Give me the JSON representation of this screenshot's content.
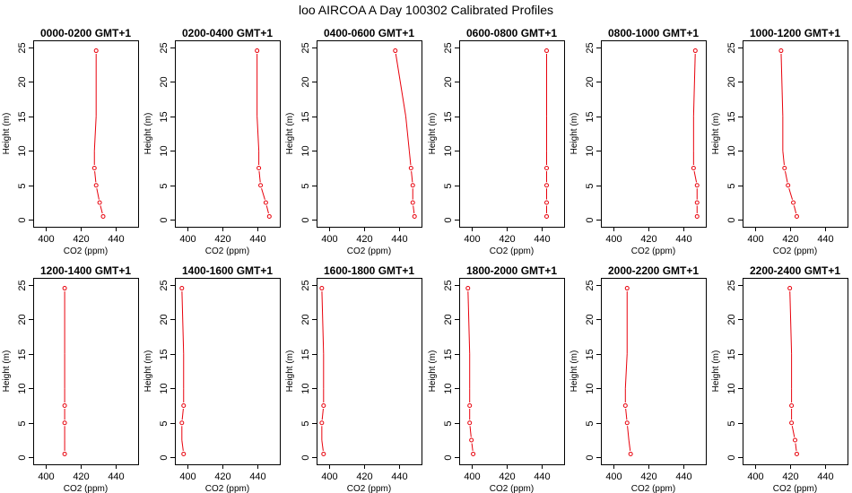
{
  "title": "loo AIRCOA A  Day 100302  Calibrated Profiles",
  "colors": {
    "series": "#e8000b",
    "axis": "#000000",
    "background": "#ffffff"
  },
  "chart_data": [
    {
      "type": "line",
      "title": "0000-0200 GMT+1",
      "xlabel": "CO2 (ppm)",
      "ylabel": "Height (m)",
      "xlim": [
        393,
        453
      ],
      "ylim": [
        -1,
        26
      ],
      "xticks": [
        400,
        420,
        440
      ],
      "yticks": [
        0,
        5,
        10,
        15,
        20,
        25
      ],
      "series": [
        {
          "x": [
            433,
            431,
            429,
            428,
            428,
            429,
            429
          ],
          "y": [
            0.5,
            2.5,
            5,
            7.5,
            10,
            15,
            24.5
          ],
          "markers": [
            true,
            true,
            true,
            true,
            false,
            false,
            true
          ]
        }
      ]
    },
    {
      "type": "line",
      "title": "0200-0400 GMT+1",
      "xlabel": "CO2 (ppm)",
      "ylabel": "Height (m)",
      "xlim": [
        393,
        453
      ],
      "ylim": [
        -1,
        26
      ],
      "xticks": [
        400,
        420,
        440
      ],
      "yticks": [
        0,
        5,
        10,
        15,
        20,
        25
      ],
      "series": [
        {
          "x": [
            447,
            445,
            442,
            441,
            441,
            440,
            440
          ],
          "y": [
            0.5,
            2.5,
            5,
            7.5,
            10,
            15,
            24.5
          ],
          "markers": [
            true,
            true,
            true,
            true,
            false,
            false,
            true
          ]
        }
      ]
    },
    {
      "type": "line",
      "title": "0400-0600 GMT+1",
      "xlabel": "CO2 (ppm)",
      "ylabel": "Height (m)",
      "xlim": [
        393,
        453
      ],
      "ylim": [
        -1,
        26
      ],
      "xticks": [
        400,
        420,
        440
      ],
      "yticks": [
        0,
        5,
        10,
        15,
        20,
        25
      ],
      "series": [
        {
          "x": [
            449,
            448,
            448,
            447,
            446,
            444,
            438
          ],
          "y": [
            0.5,
            2.5,
            5,
            7.5,
            10,
            15,
            24.5
          ],
          "markers": [
            true,
            true,
            true,
            true,
            false,
            false,
            true
          ]
        }
      ]
    },
    {
      "type": "line",
      "title": "0600-0800 GMT+1",
      "xlabel": "CO2 (ppm)",
      "ylabel": "Height (m)",
      "xlim": [
        393,
        453
      ],
      "ylim": [
        -1,
        26
      ],
      "xticks": [
        400,
        420,
        440
      ],
      "yticks": [
        0,
        5,
        10,
        15,
        20,
        25
      ],
      "series": [
        {
          "x": [
            443,
            443,
            443,
            443,
            443,
            443,
            443
          ],
          "y": [
            0.5,
            2.5,
            5,
            7.5,
            10,
            15,
            24.5
          ],
          "markers": [
            true,
            true,
            true,
            true,
            false,
            false,
            true
          ]
        }
      ]
    },
    {
      "type": "line",
      "title": "0800-1000 GMT+1",
      "xlabel": "CO2 (ppm)",
      "ylabel": "Height (m)",
      "xlim": [
        393,
        453
      ],
      "ylim": [
        -1,
        26
      ],
      "xticks": [
        400,
        420,
        440
      ],
      "yticks": [
        0,
        5,
        10,
        15,
        20,
        25
      ],
      "series": [
        {
          "x": [
            448,
            448,
            448,
            446,
            446,
            446,
            447
          ],
          "y": [
            0.5,
            2.5,
            5,
            7.5,
            10,
            15,
            24.5
          ],
          "markers": [
            true,
            true,
            true,
            true,
            false,
            false,
            true
          ]
        }
      ]
    },
    {
      "type": "line",
      "title": "1000-1200 GMT+1",
      "xlabel": "CO2 (ppm)",
      "ylabel": "Height (m)",
      "xlim": [
        393,
        453
      ],
      "ylim": [
        -1,
        26
      ],
      "xticks": [
        400,
        420,
        440
      ],
      "yticks": [
        0,
        5,
        10,
        15,
        20,
        25
      ],
      "series": [
        {
          "x": [
            424,
            422,
            419,
            417,
            416,
            416,
            415
          ],
          "y": [
            0.5,
            2.5,
            5,
            7.5,
            10,
            15,
            24.5
          ],
          "markers": [
            true,
            true,
            true,
            true,
            false,
            false,
            true
          ]
        }
      ]
    },
    {
      "type": "line",
      "title": "1200-1400 GMT+1",
      "xlabel": "CO2 (ppm)",
      "ylabel": "Height (m)",
      "xlim": [
        393,
        453
      ],
      "ylim": [
        -1,
        26
      ],
      "xticks": [
        400,
        420,
        440
      ],
      "yticks": [
        0,
        5,
        10,
        15,
        20,
        25
      ],
      "series": [
        {
          "x": [
            411,
            411,
            411,
            411,
            411,
            411,
            411
          ],
          "y": [
            0.5,
            2.5,
            5,
            7.5,
            10,
            15,
            24.5
          ],
          "markers": [
            true,
            false,
            true,
            true,
            false,
            false,
            true
          ]
        }
      ]
    },
    {
      "type": "line",
      "title": "1400-1600 GMT+1",
      "xlabel": "CO2 (ppm)",
      "ylabel": "Height (m)",
      "xlim": [
        393,
        453
      ],
      "ylim": [
        -1,
        26
      ],
      "xticks": [
        400,
        420,
        440
      ],
      "yticks": [
        0,
        5,
        10,
        15,
        20,
        25
      ],
      "series": [
        {
          "x": [
            398,
            397,
            397,
            398,
            398,
            398,
            397
          ],
          "y": [
            0.5,
            2.5,
            5,
            7.5,
            10,
            15,
            24.5
          ],
          "markers": [
            true,
            false,
            true,
            true,
            false,
            false,
            true
          ]
        }
      ]
    },
    {
      "type": "line",
      "title": "1600-1800 GMT+1",
      "xlabel": "CO2 (ppm)",
      "ylabel": "Height (m)",
      "xlim": [
        393,
        453
      ],
      "ylim": [
        -1,
        26
      ],
      "xticks": [
        400,
        420,
        440
      ],
      "yticks": [
        0,
        5,
        10,
        15,
        20,
        25
      ],
      "series": [
        {
          "x": [
            397,
            396,
            396,
            397,
            397,
            397,
            396
          ],
          "y": [
            0.5,
            2.5,
            5,
            7.5,
            10,
            15,
            24.5
          ],
          "markers": [
            true,
            false,
            true,
            true,
            false,
            false,
            true
          ]
        }
      ]
    },
    {
      "type": "line",
      "title": "1800-2000 GMT+1",
      "xlabel": "CO2 (ppm)",
      "ylabel": "Height (m)",
      "xlim": [
        393,
        453
      ],
      "ylim": [
        -1,
        26
      ],
      "xticks": [
        400,
        420,
        440
      ],
      "yticks": [
        0,
        5,
        10,
        15,
        20,
        25
      ],
      "series": [
        {
          "x": [
            401,
            400,
            399,
            399,
            399,
            399,
            398
          ],
          "y": [
            0.5,
            2.5,
            5,
            7.5,
            10,
            15,
            24.5
          ],
          "markers": [
            true,
            true,
            true,
            true,
            false,
            false,
            true
          ]
        }
      ]
    },
    {
      "type": "line",
      "title": "2000-2200 GMT+1",
      "xlabel": "CO2 (ppm)",
      "ylabel": "Height (m)",
      "xlim": [
        393,
        453
      ],
      "ylim": [
        -1,
        26
      ],
      "xticks": [
        400,
        420,
        440
      ],
      "yticks": [
        0,
        5,
        10,
        15,
        20,
        25
      ],
      "series": [
        {
          "x": [
            410,
            409,
            408,
            407,
            407,
            408,
            408
          ],
          "y": [
            0.5,
            2.5,
            5,
            7.5,
            10,
            15,
            24.5
          ],
          "markers": [
            true,
            false,
            true,
            true,
            false,
            false,
            true
          ]
        }
      ]
    },
    {
      "type": "line",
      "title": "2200-2400 GMT+1",
      "xlabel": "CO2 (ppm)",
      "ylabel": "Height (m)",
      "xlim": [
        393,
        453
      ],
      "ylim": [
        -1,
        26
      ],
      "xticks": [
        400,
        420,
        440
      ],
      "yticks": [
        0,
        5,
        10,
        15,
        20,
        25
      ],
      "series": [
        {
          "x": [
            424,
            423,
            421,
            421,
            421,
            421,
            420
          ],
          "y": [
            0.5,
            2.5,
            5,
            7.5,
            10,
            15,
            24.5
          ],
          "markers": [
            true,
            true,
            true,
            true,
            false,
            false,
            true
          ]
        }
      ]
    }
  ]
}
